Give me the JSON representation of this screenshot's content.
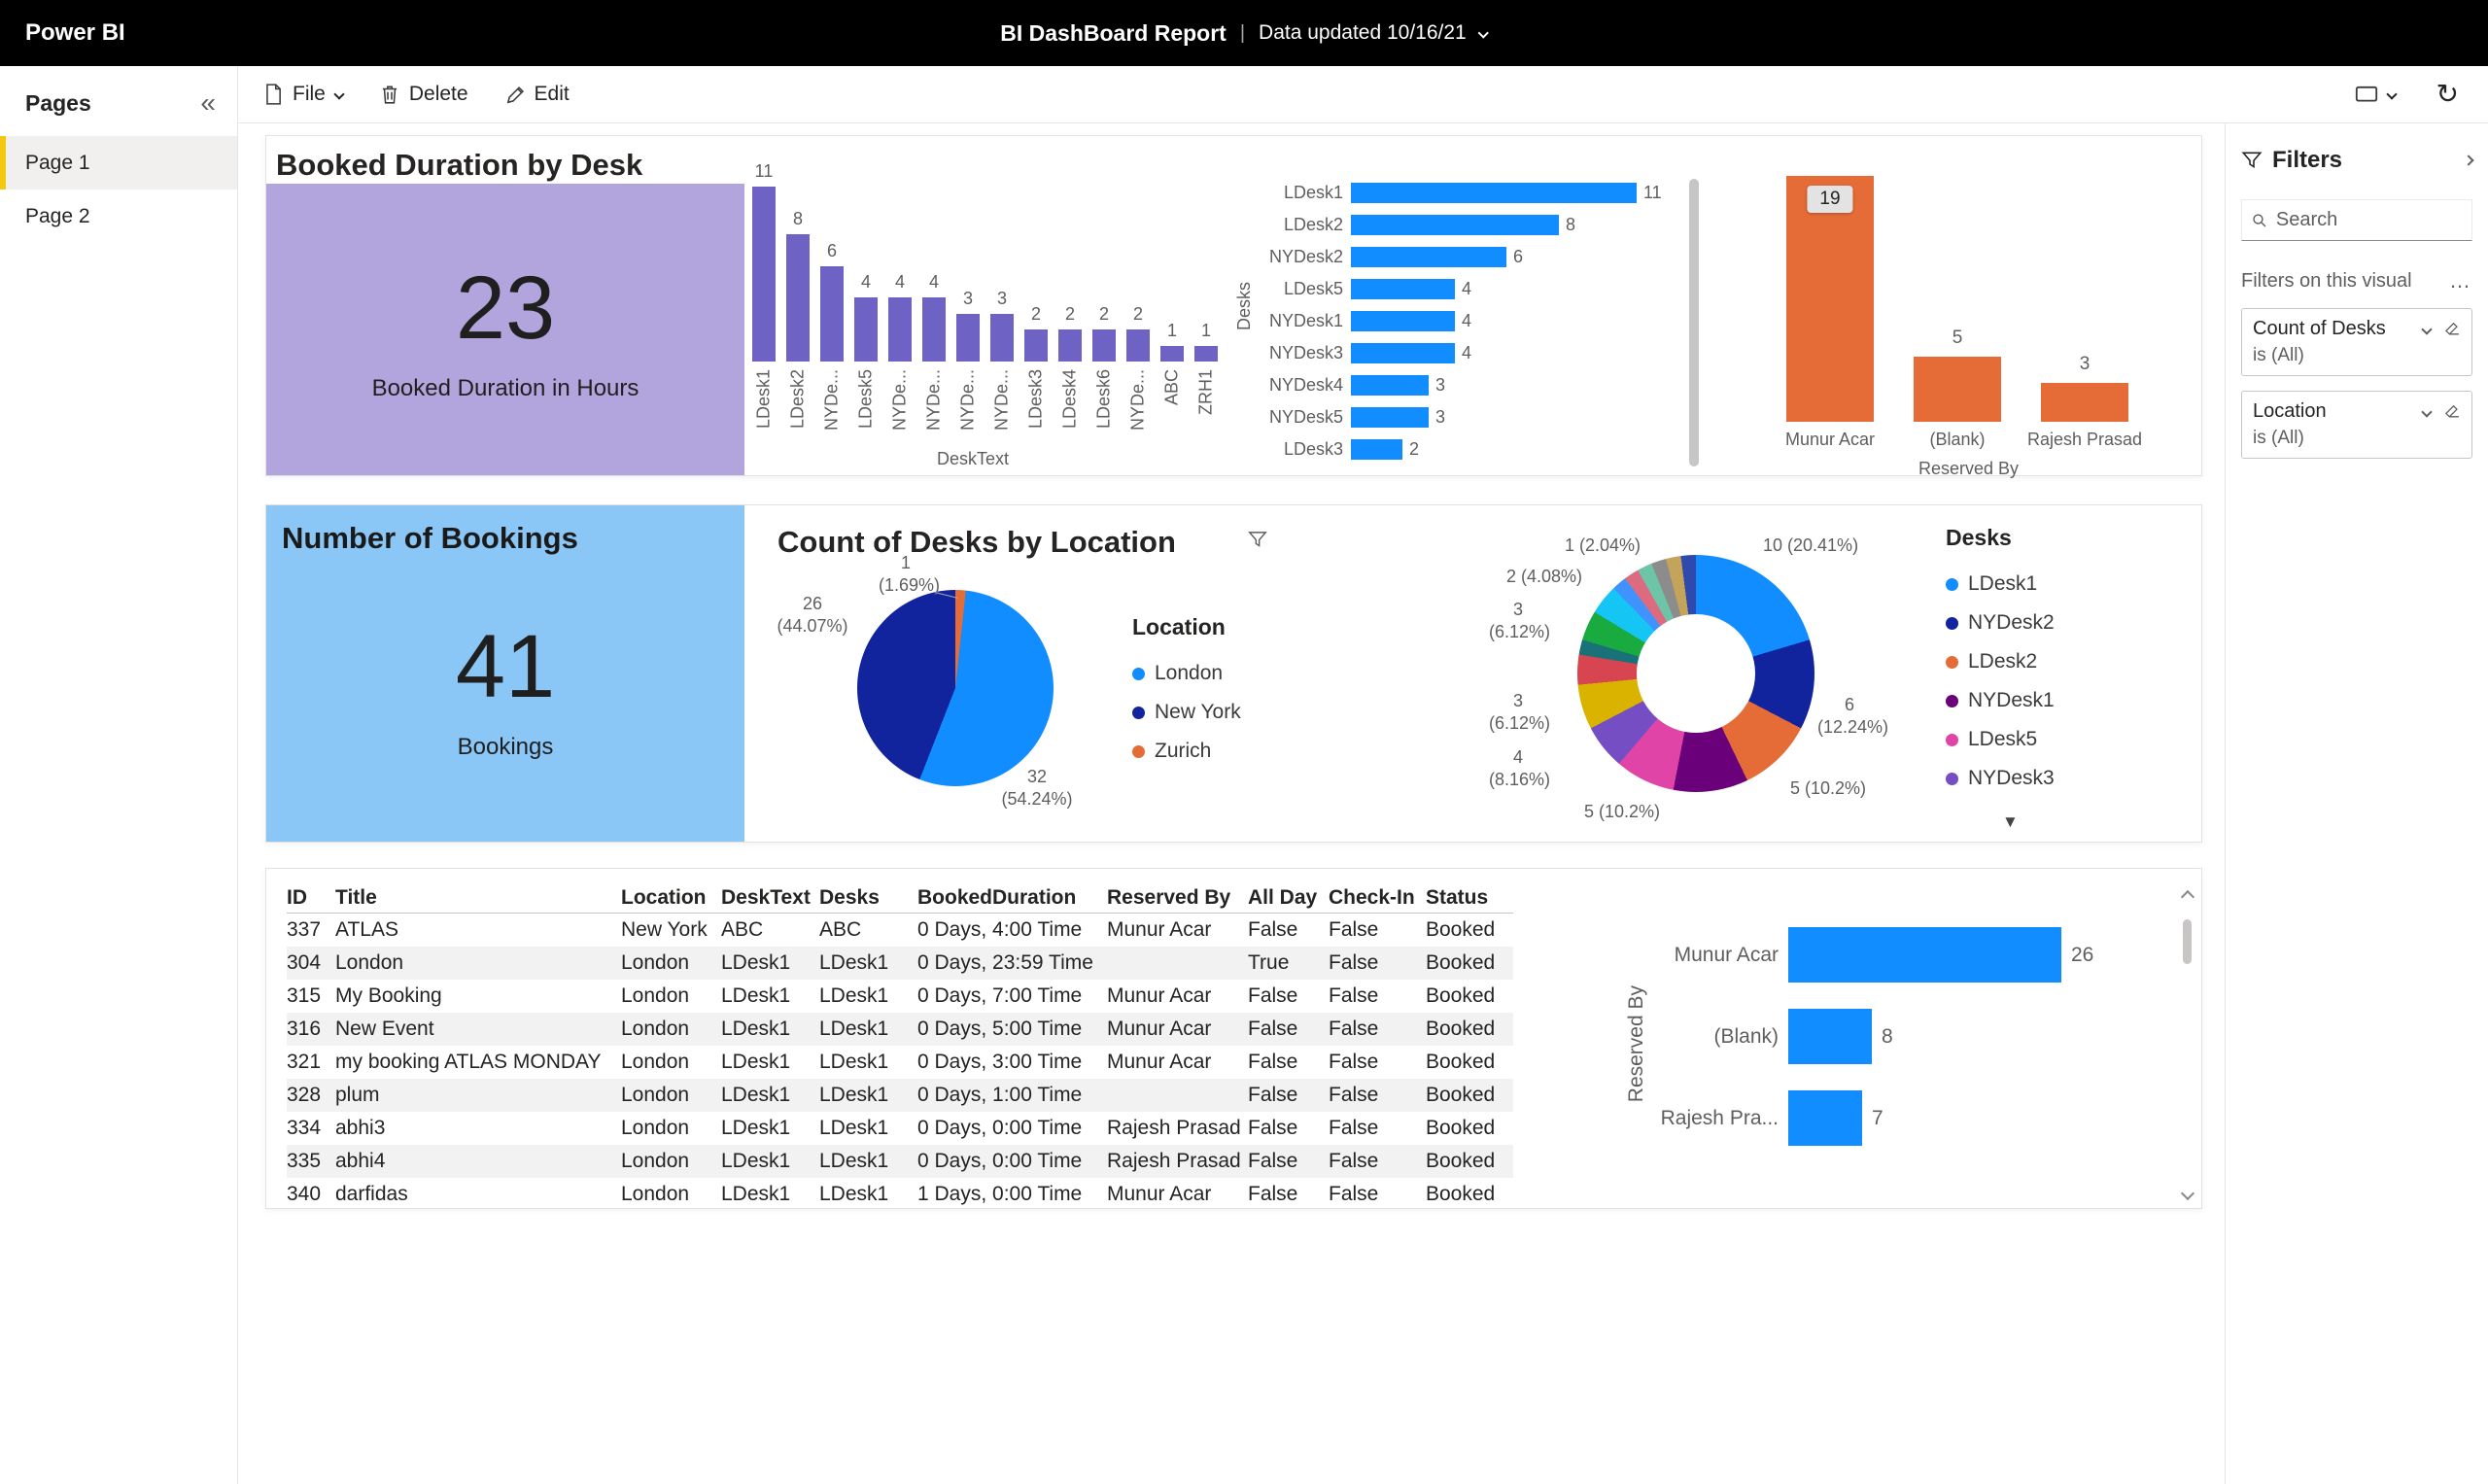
{
  "colors": {
    "accent": "#F2C811"
  },
  "icons": {
    "collapse": "«",
    "more": "…",
    "legend_scroll": "▼",
    "sort_asc": "▲",
    "refresh": "↻"
  },
  "topbar": {
    "logo": "Power BI",
    "title": "BI DashBoard Report",
    "separator": "|",
    "updated": "Data updated 10/16/21"
  },
  "sidebar": {
    "header": "Pages",
    "items": [
      {
        "label": "Page 1",
        "active": true
      },
      {
        "label": "Page 2",
        "active": false
      }
    ]
  },
  "toolbar": {
    "file_label": "File",
    "delete_label": "Delete",
    "edit_label": "Edit"
  },
  "filters": {
    "title": "Filters",
    "search_placeholder": "Search",
    "section_label": "Filters on this visual",
    "items": [
      {
        "name": "Count of Desks",
        "value": "is (All)"
      },
      {
        "name": "Location",
        "value": "is (All)"
      }
    ]
  },
  "card1": {
    "title": "Booked Duration by Desk",
    "kpi": {
      "value": "23",
      "label": "Booked Duration in Hours",
      "bg": "#B2A4DC"
    },
    "column_chart": {
      "xlabel": "DeskText",
      "color": "#6E63C4",
      "bars": [
        {
          "label": "LDesk1",
          "value": 11
        },
        {
          "label": "LDesk2",
          "value": 8
        },
        {
          "label": "NYDe...",
          "value": 6
        },
        {
          "label": "LDesk5",
          "value": 4
        },
        {
          "label": "NYDe...",
          "value": 4
        },
        {
          "label": "NYDe...",
          "value": 4
        },
        {
          "label": "NYDe...",
          "value": 3
        },
        {
          "label": "NYDe...",
          "value": 3
        },
        {
          "label": "LDesk3",
          "value": 2
        },
        {
          "label": "LDesk4",
          "value": 2
        },
        {
          "label": "LDesk6",
          "value": 2
        },
        {
          "label": "NYDe...",
          "value": 2
        },
        {
          "label": "ABC",
          "value": 1
        },
        {
          "label": "ZRH1",
          "value": 1
        }
      ]
    },
    "hbar_chart": {
      "ylabel": "Desks",
      "color": "#118DFF",
      "bars": [
        {
          "label": "LDesk1",
          "value": 11
        },
        {
          "label": "LDesk2",
          "value": 8
        },
        {
          "label": "NYDesk2",
          "value": 6
        },
        {
          "label": "LDesk5",
          "value": 4
        },
        {
          "label": "NYDesk1",
          "value": 4
        },
        {
          "label": "NYDesk3",
          "value": 4
        },
        {
          "label": "NYDesk4",
          "value": 3
        },
        {
          "label": "NYDesk5",
          "value": 3
        },
        {
          "label": "LDesk3",
          "value": 2
        }
      ]
    },
    "orange_chart": {
      "xlabel": "Reserved By",
      "color": "#E66C37",
      "bars": [
        {
          "label": "Munur Acar",
          "value": 19,
          "boxed": true
        },
        {
          "label": "(Blank)",
          "value": 5
        },
        {
          "label": "Rajesh Prasad",
          "value": 3
        }
      ]
    }
  },
  "card2": {
    "kpi_title": "Number of Bookings",
    "kpi": {
      "value": "41",
      "label": "Bookings",
      "bg": "#8AC6F6"
    },
    "pie": {
      "title": "Count of Desks by Location",
      "legend_title": "Location",
      "slices": [
        {
          "label": "London",
          "value": 32,
          "pct": "54.24%",
          "color": "#118DFF"
        },
        {
          "label": "New York",
          "value": 26,
          "pct": "44.07%",
          "color": "#12239E"
        },
        {
          "label": "Zurich",
          "value": 1,
          "pct": "1.69%",
          "color": "#E66C37"
        }
      ],
      "callouts": [
        "26 (44.07%)",
        "1 (1.69%)",
        "32 (54.24%)"
      ]
    },
    "donut": {
      "legend_title": "Desks",
      "legend": [
        {
          "label": "LDesk1",
          "color": "#118DFF"
        },
        {
          "label": "NYDesk2",
          "color": "#12239E"
        },
        {
          "label": "LDesk2",
          "color": "#E66C37"
        },
        {
          "label": "NYDesk1",
          "color": "#6B007B"
        },
        {
          "label": "LDesk5",
          "color": "#E044A7"
        },
        {
          "label": "NYDesk3",
          "color": "#744EC2"
        }
      ],
      "segments": [
        {
          "label": "LDesk1",
          "value": 10,
          "color": "#118DFF"
        },
        {
          "label": "NYDesk2",
          "value": 6,
          "color": "#12239E"
        },
        {
          "label": "LDesk2",
          "value": 5,
          "color": "#E66C37"
        },
        {
          "label": "NYDesk1",
          "value": 5,
          "color": "#6B007B"
        },
        {
          "label": "LDesk5",
          "value": 4,
          "color": "#E044A7"
        },
        {
          "label": "NYDesk3",
          "value": 3,
          "color": "#744EC2"
        },
        {
          "value": 3,
          "color": "#D9B300"
        },
        {
          "value": 2,
          "color": "#D64550"
        },
        {
          "value": 1,
          "color": "#197278"
        },
        {
          "value": 2,
          "color": "#1AAB40"
        },
        {
          "value": 2,
          "color": "#15C6F4"
        },
        {
          "value": 1,
          "color": "#4092FF"
        },
        {
          "value": 1,
          "color": "#DD6B7F"
        },
        {
          "value": 1,
          "color": "#6DC4A7"
        },
        {
          "value": 1,
          "color": "#8C8C8C"
        },
        {
          "value": 1,
          "color": "#C4A35A"
        },
        {
          "value": 1,
          "color": "#3049AD"
        }
      ],
      "callouts": [
        "1 (2.04%)",
        "2 (4.08%)",
        "10 (20.41%)",
        "3 (6.12%)",
        "3 (6.12%)",
        "4 (8.16%)",
        "5 (10.2%)",
        "5 (10.2%)",
        "6 (12.24%)"
      ]
    }
  },
  "card3": {
    "table": {
      "columns": [
        "ID",
        "Title",
        "Location",
        "DeskText",
        "Desks",
        "BookedDuration",
        "Reserved By",
        "All Day",
        "Check-In",
        "Status"
      ],
      "sort_column": "Desks",
      "rows": [
        [
          "337",
          "ATLAS",
          "New York",
          "ABC",
          "ABC",
          "0 Days, 4:00 Time",
          "Munur Acar",
          "False",
          "False",
          "Booked"
        ],
        [
          "304",
          "London",
          "London",
          "LDesk1",
          "LDesk1",
          "0 Days, 23:59 Time",
          "",
          "True",
          "False",
          "Booked"
        ],
        [
          "315",
          "My Booking",
          "London",
          "LDesk1",
          "LDesk1",
          "0 Days, 7:00 Time",
          "Munur Acar",
          "False",
          "False",
          "Booked"
        ],
        [
          "316",
          "New Event",
          "London",
          "LDesk1",
          "LDesk1",
          "0 Days, 5:00 Time",
          "Munur Acar",
          "False",
          "False",
          "Booked"
        ],
        [
          "321",
          "my booking ATLAS MONDAY",
          "London",
          "LDesk1",
          "LDesk1",
          "0 Days, 3:00 Time",
          "Munur Acar",
          "False",
          "False",
          "Booked"
        ],
        [
          "328",
          "plum",
          "London",
          "LDesk1",
          "LDesk1",
          "0 Days, 1:00 Time",
          "",
          "False",
          "False",
          "Booked"
        ],
        [
          "334",
          "abhi3",
          "London",
          "LDesk1",
          "LDesk1",
          "0 Days, 0:00 Time",
          "Rajesh Prasad",
          "False",
          "False",
          "Booked"
        ],
        [
          "335",
          "abhi4",
          "London",
          "LDesk1",
          "LDesk1",
          "0 Days, 0:00 Time",
          "Rajesh Prasad",
          "False",
          "False",
          "Booked"
        ],
        [
          "340",
          "darfidas",
          "London",
          "LDesk1",
          "LDesk1",
          "1 Days, 0:00 Time",
          "Munur Acar",
          "False",
          "False",
          "Booked"
        ]
      ]
    },
    "hbar_chart": {
      "ylabel": "Reserved By",
      "color": "#118DFF",
      "bars": [
        {
          "label": "Munur Acar",
          "value": 26
        },
        {
          "label": "(Blank)",
          "value": 8
        },
        {
          "label": "Rajesh Pra...",
          "value": 7
        }
      ]
    }
  }
}
